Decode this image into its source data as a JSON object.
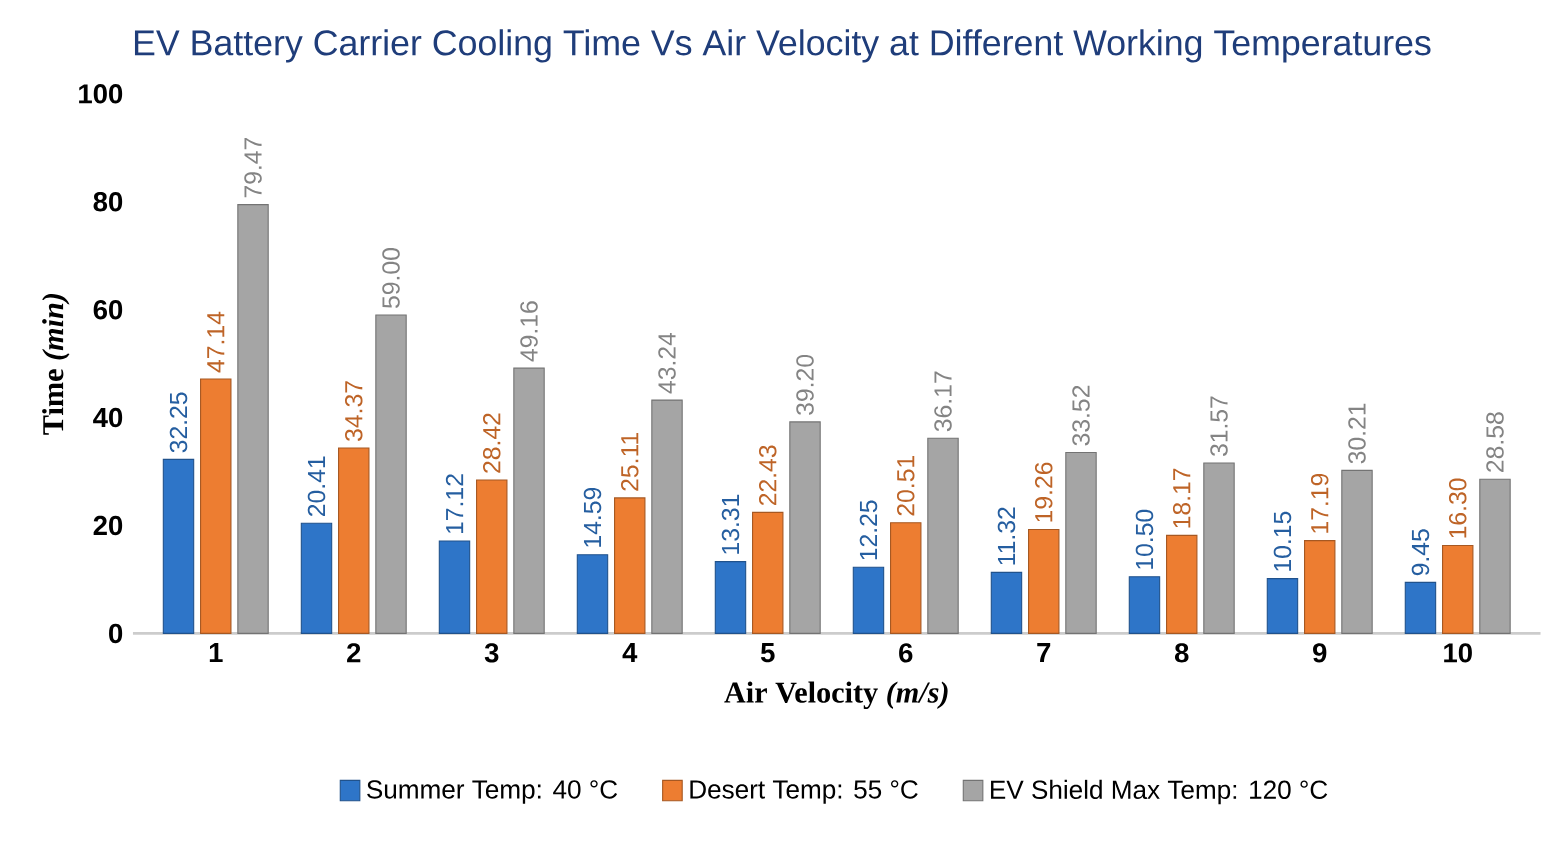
{
  "chart_data": {
    "type": "bar",
    "title": "EV Battery Carrier Cooling Time Vs Air Velocity at Different Working Temperatures",
    "xlabel": "Air Velocity *(m/s)*",
    "ylabel": "Time *(min)*",
    "categories": [
      "1",
      "2",
      "3",
      "4",
      "5",
      "6",
      "7",
      "8",
      "9",
      "10"
    ],
    "series": [
      {
        "name": "Summer Temp: 40 °C",
        "color": "#2e75c8",
        "values": [
          32.25,
          20.41,
          17.12,
          14.59,
          13.31,
          12.25,
          11.32,
          10.5,
          10.15,
          9.45
        ],
        "value_labels": [
          "32.25",
          "20.41",
          "17.12",
          "14.59",
          "13.31",
          "12.25",
          "11.32",
          "10.50",
          "10.15",
          "9.45"
        ]
      },
      {
        "name": "Desert Temp: 55 °C",
        "color": "#ed7d31",
        "values": [
          47.14,
          34.37,
          28.42,
          25.11,
          22.43,
          20.51,
          19.26,
          18.17,
          17.19,
          16.3
        ],
        "value_labels": [
          "47.14",
          "34.37",
          "28.42",
          "25.11",
          "22.43",
          "20.51",
          "19.26",
          "18.17",
          "17.19",
          "16.30"
        ]
      },
      {
        "name": "EV Shield Max Temp: 120 °C",
        "color": "#a5a5a5",
        "values": [
          79.47,
          59.0,
          49.16,
          43.24,
          39.2,
          36.17,
          33.52,
          31.57,
          30.21,
          28.58
        ],
        "value_labels": [
          "79.47",
          "59.00",
          "49.16",
          "43.24",
          "39.20",
          "36.17",
          "33.52",
          "31.57",
          "30.21",
          "28.58"
        ]
      }
    ],
    "ylim": [
      0,
      100
    ],
    "yticks": [
      0,
      20,
      40,
      60,
      80,
      100
    ],
    "grid": false,
    "legend": "bottom"
  }
}
